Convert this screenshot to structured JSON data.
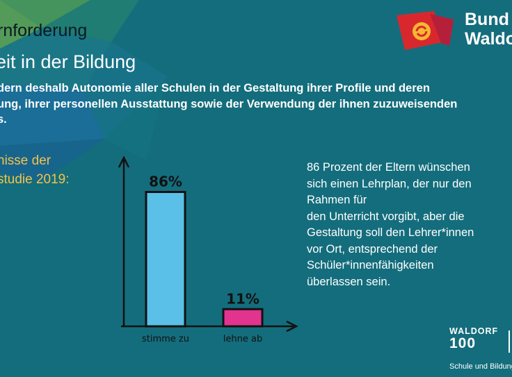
{
  "header": {
    "title": "rnforderung",
    "subtitle": "eit in der Bildung"
  },
  "body_lines": [
    "dern deshalb Autonomie aller Schulen in der Gestaltung ihrer Profile und deren",
    "ung, ihrer personellen Ausstattung sowie der Verwendung der ihnen zuzuweisenden",
    "s."
  ],
  "section_lines": [
    "nisse der",
    "studie 2019:"
  ],
  "description_lines": [
    "86 Prozent der Eltern wünschen",
    "sich einen Lehrplan, der nur den",
    "Rahmen für",
    "den Unterricht vorgibt, aber die",
    "Gestaltung soll den Lehrer*innen",
    "vor Ort, entsprechend der",
    "Schüler*innenfähigkeiten",
    "überlassen sein."
  ],
  "brand": {
    "line1": "Bund d",
    "line2": "Waldo"
  },
  "waldorf100": {
    "name": "WALDORF",
    "number": "100"
  },
  "footer": "Schule und Bildung",
  "colors": {
    "background": "#146d7c",
    "bar_blue": "#5bc0e8",
    "bar_pink": "#e2348e",
    "accent_yellow": "#f2c24f"
  },
  "chart_data": {
    "type": "bar",
    "categories": [
      "stimme zu",
      "lehne ab"
    ],
    "values": [
      86,
      11
    ],
    "data_labels": [
      "86%",
      "11%"
    ],
    "colors": [
      "#5bc0e8",
      "#e2348e"
    ],
    "ylim": [
      0,
      100
    ]
  }
}
